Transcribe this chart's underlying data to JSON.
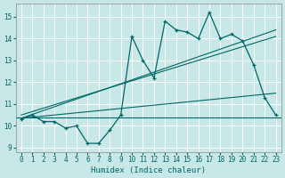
{
  "xlabel": "Humidex (Indice chaleur)",
  "bg_color": "#c8e8e8",
  "grid_color": "#ffffff",
  "line_color": "#006666",
  "xlim": [
    -0.5,
    23.5
  ],
  "ylim": [
    8.8,
    15.6
  ],
  "yticks": [
    9,
    10,
    11,
    12,
    13,
    14,
    15
  ],
  "xticks": [
    0,
    1,
    2,
    3,
    4,
    5,
    6,
    7,
    8,
    9,
    10,
    11,
    12,
    13,
    14,
    15,
    16,
    17,
    18,
    19,
    20,
    21,
    22,
    23
  ],
  "main_x": [
    0,
    1,
    2,
    3,
    4,
    5,
    6,
    7,
    8,
    9,
    10,
    11,
    12,
    13,
    14,
    15,
    16,
    17,
    18,
    19,
    20,
    21,
    22,
    23
  ],
  "main_y": [
    10.3,
    10.5,
    10.2,
    10.2,
    9.9,
    10.0,
    9.2,
    9.2,
    9.8,
    10.5,
    14.1,
    13.0,
    12.2,
    14.8,
    14.4,
    14.3,
    14.0,
    15.2,
    14.0,
    14.2,
    13.9,
    12.8,
    11.3,
    10.5
  ],
  "horiz_line_y": 10.4,
  "trend1_x": [
    0,
    23
  ],
  "trend1_y": [
    10.35,
    11.5
  ],
  "trend2_x": [
    0,
    23
  ],
  "trend2_y": [
    10.5,
    14.1
  ],
  "trend3_x": [
    0,
    23
  ],
  "trend3_y": [
    10.35,
    14.4
  ],
  "xlabel_fontsize": 6.5,
  "tick_fontsize": 5.5
}
